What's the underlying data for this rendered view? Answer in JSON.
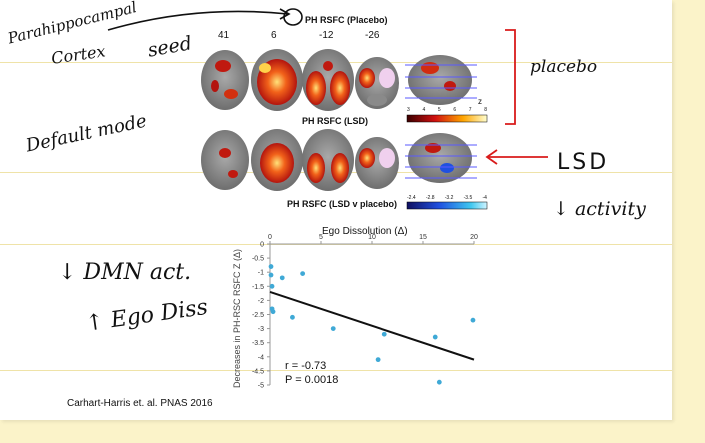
{
  "figure_top": {
    "title_placebo": "PH RSFC (Placebo)",
    "title_lsd": "PH RSFC (LSD)",
    "title_contrast": "PH RSFC (LSD v placebo)",
    "slices": [
      "41",
      "6",
      "-12",
      "-26"
    ],
    "z_label": "z",
    "scale_top_ticks": [
      "3",
      "4",
      "5",
      "6",
      "7",
      "8"
    ],
    "scale_bottom_ticks": [
      "-2.4",
      "-2.8",
      "-3.2",
      "-3.5",
      "-4"
    ]
  },
  "annotations": {
    "parahippocampal": "Parahippocampal",
    "cortex": "Cortex",
    "seed": "seed",
    "default_mode": "Default mode",
    "placebo": "placebo",
    "lsd": "LSD",
    "activity": "↓ activity",
    "dmn_act": "↓ DMN act.",
    "ego_diss": "↑ Ego Diss"
  },
  "citation": "Carhart-Harris et. al. PNAS 2016",
  "chart_data": {
    "type": "scatter",
    "title": "Ego Dissolution (Δ)",
    "ylabel": "Decreases in PH-RSC RSFC Z (Δ)",
    "xlim": [
      0,
      20
    ],
    "ylim": [
      -5,
      0
    ],
    "xticks": [
      "0",
      "5",
      "10",
      "15",
      "20"
    ],
    "yticks": [
      "0",
      "-0.5",
      "-1",
      "-1.5",
      "-2",
      "-2.5",
      "-3",
      "-3.5",
      "-4",
      "-4.5",
      "-5"
    ],
    "points": [
      {
        "x": 0.1,
        "y": -0.8
      },
      {
        "x": 0.1,
        "y": -1.1
      },
      {
        "x": 0.2,
        "y": -1.5
      },
      {
        "x": 0.2,
        "y": -2.3
      },
      {
        "x": 0.3,
        "y": -2.4
      },
      {
        "x": 1.2,
        "y": -1.2
      },
      {
        "x": 2.2,
        "y": -2.6
      },
      {
        "x": 3.2,
        "y": -1.05
      },
      {
        "x": 6.2,
        "y": -3.0
      },
      {
        "x": 10.6,
        "y": -4.1
      },
      {
        "x": 11.2,
        "y": -3.2
      },
      {
        "x": 16.2,
        "y": -3.3
      },
      {
        "x": 16.6,
        "y": -4.9
      },
      {
        "x": 19.9,
        "y": -2.7
      }
    ],
    "fit_line": {
      "x": [
        0,
        20
      ],
      "y": [
        -1.7,
        -4.1
      ]
    },
    "stats": [
      "r = -0.73",
      "P = 0.0018"
    ],
    "point_color": "#3fa9d6"
  }
}
